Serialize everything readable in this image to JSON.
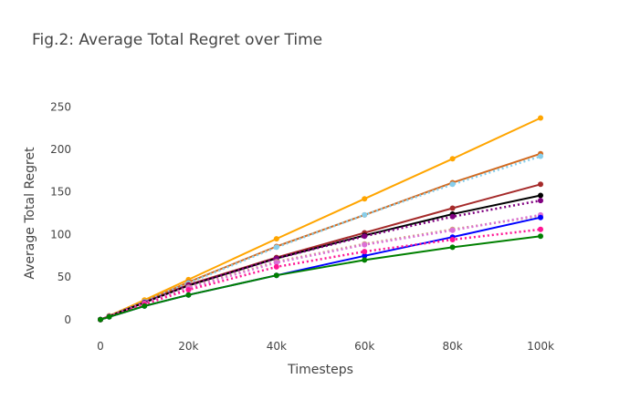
{
  "chart_data": {
    "type": "line",
    "title": "Fig.2: Average Total Regret over Time",
    "xlabel": "Timesteps",
    "ylabel": "Average Total Regret",
    "xlim": [
      0,
      100000
    ],
    "ylim": [
      -12,
      290
    ],
    "x_ticks": [
      0,
      20000,
      40000,
      60000,
      80000,
      100000
    ],
    "x_tick_labels": [
      "0",
      "20k",
      "40k",
      "60k",
      "80k",
      "100k"
    ],
    "y_ticks": [
      0,
      50,
      100,
      150,
      200,
      250
    ],
    "y_tick_labels": [
      "0",
      "50",
      "100",
      "150",
      "200",
      "250"
    ],
    "grid": false,
    "legend": "none",
    "series": [
      {
        "color": "#ffa500",
        "dash": "solid",
        "x": [
          0,
          2000,
          10000,
          20000,
          40000,
          60000,
          80000,
          100000
        ],
        "y": [
          0,
          4.5,
          23,
          47,
          95,
          142,
          189,
          237
        ]
      },
      {
        "color": "#d2691e",
        "dash": "solid",
        "x": [
          0,
          2000,
          10000,
          20000,
          40000,
          60000,
          80000,
          100000
        ],
        "y": [
          0,
          4.3,
          21,
          44,
          86,
          123,
          161,
          195
        ]
      },
      {
        "color": "#87ceeb",
        "dash": "dotted",
        "x": [
          0,
          2000,
          10000,
          20000,
          40000,
          60000,
          80000,
          100000
        ],
        "y": [
          0,
          4.2,
          21,
          43,
          85,
          123,
          159,
          192
        ]
      },
      {
        "color": "#a52a2a",
        "dash": "solid",
        "x": [
          0,
          2000,
          10000,
          20000,
          40000,
          60000,
          80000,
          100000
        ],
        "y": [
          0,
          4.0,
          20,
          41,
          73,
          102,
          131,
          159
        ]
      },
      {
        "color": "#000000",
        "dash": "solid",
        "x": [
          0,
          2000,
          10000,
          20000,
          40000,
          60000,
          80000,
          100000
        ],
        "y": [
          0,
          3.9,
          20,
          40,
          72,
          99,
          124,
          146
        ]
      },
      {
        "color": "#800080",
        "dash": "dotted",
        "x": [
          0,
          2000,
          10000,
          20000,
          40000,
          60000,
          80000,
          100000
        ],
        "y": [
          0,
          3.8,
          20,
          40,
          72,
          98,
          121,
          140
        ]
      },
      {
        "color": "#d2a679",
        "dash": "dotted",
        "x": [
          0,
          2000,
          10000,
          20000,
          40000,
          60000,
          80000,
          100000
        ],
        "y": [
          0,
          3.6,
          19,
          38,
          68,
          89,
          106,
          122
        ]
      },
      {
        "color": "#da70d6",
        "dash": "dotted",
        "x": [
          0,
          2000,
          10000,
          20000,
          40000,
          60000,
          80000,
          100000
        ],
        "y": [
          0,
          3.5,
          19,
          37,
          67,
          88,
          105,
          123
        ]
      },
      {
        "color": "#0000ff",
        "dash": "solid",
        "x": [
          0,
          2000,
          10000,
          20000,
          40000,
          60000,
          80000,
          100000
        ],
        "y": [
          0,
          3.2,
          16,
          29,
          52,
          75,
          97,
          120
        ]
      },
      {
        "color": "#ff1493",
        "dash": "dotted",
        "x": [
          0,
          2000,
          10000,
          20000,
          40000,
          60000,
          80000,
          100000
        ],
        "y": [
          0,
          3.4,
          18,
          35,
          62,
          80,
          94,
          106
        ]
      },
      {
        "color": "#008000",
        "dash": "solid",
        "x": [
          0,
          2000,
          10000,
          20000,
          40000,
          60000,
          80000,
          100000
        ],
        "y": [
          0,
          3.2,
          16,
          29,
          52,
          70,
          85,
          98
        ]
      }
    ]
  }
}
